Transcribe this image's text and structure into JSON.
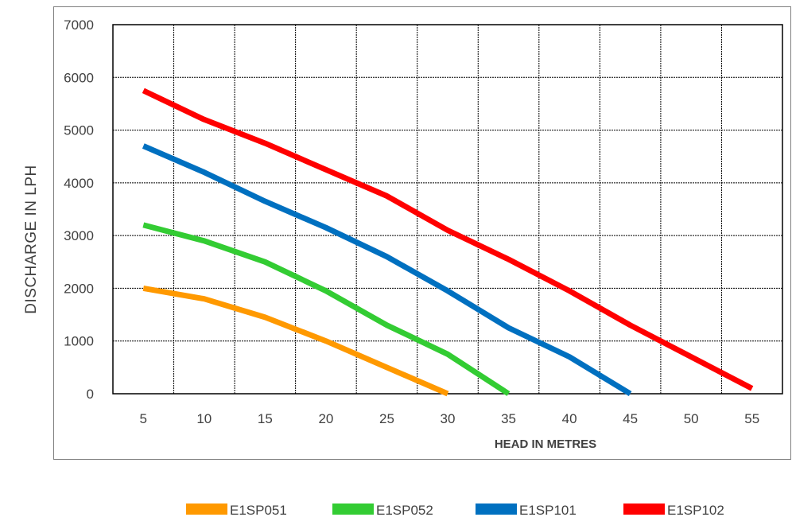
{
  "chart_data": {
    "type": "line",
    "title": "",
    "xlabel": "HEAD IN METRES",
    "ylabel": "DISCHARGE IN LPH",
    "x_ticks": [
      5,
      10,
      15,
      20,
      25,
      30,
      35,
      40,
      45,
      50,
      55
    ],
    "y_ticks": [
      0,
      1000,
      2000,
      3000,
      4000,
      5000,
      6000,
      7000
    ],
    "xlim": [
      2.5,
      57.5
    ],
    "ylim": [
      0,
      7000
    ],
    "grid": true,
    "legend_position": "bottom",
    "series": [
      {
        "name": "E1SP051",
        "color": "#ff9900",
        "x": [
          5,
          10,
          15,
          20,
          25,
          30
        ],
        "y": [
          2000,
          1800,
          1450,
          1000,
          500,
          0
        ]
      },
      {
        "name": "E1SP052",
        "color": "#33cc33",
        "x": [
          5,
          10,
          15,
          20,
          25,
          30,
          35
        ],
        "y": [
          3200,
          2900,
          2500,
          1950,
          1300,
          750,
          0
        ]
      },
      {
        "name": "E1SP101",
        "color": "#0070c0",
        "x": [
          5,
          10,
          15,
          20,
          25,
          30,
          35,
          40,
          45
        ],
        "y": [
          4700,
          4200,
          3650,
          3150,
          2600,
          1950,
          1250,
          700,
          0
        ]
      },
      {
        "name": "E1SP102",
        "color": "#ff0000",
        "x": [
          5,
          10,
          15,
          20,
          25,
          30,
          35,
          40,
          45,
          50,
          55
        ],
        "y": [
          5750,
          5200,
          4750,
          4250,
          3750,
          3100,
          2550,
          1950,
          1300,
          700,
          100
        ]
      }
    ]
  }
}
